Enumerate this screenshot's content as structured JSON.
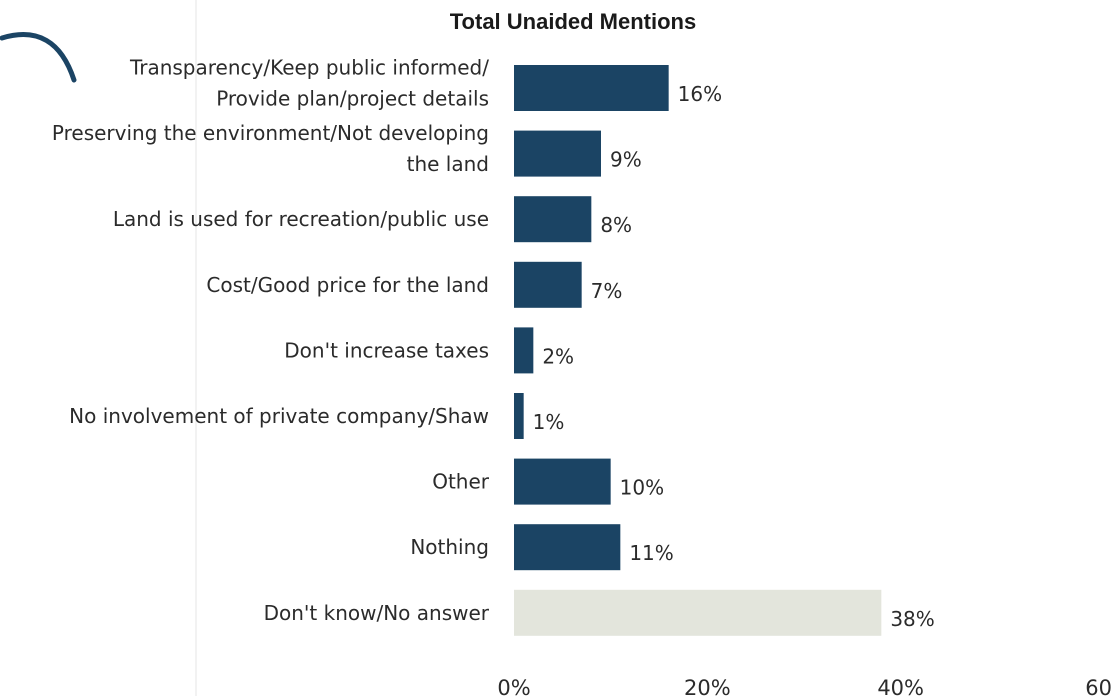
{
  "colors": {
    "bar": "#1b4464",
    "bar_highlight": "#e3e5dc",
    "text": "#2b2b2b",
    "decor_arc": "#1b4464",
    "divider": "#e6e6e6"
  },
  "chart_data": {
    "type": "bar",
    "orientation": "horizontal",
    "title": "Total Unaided Mentions",
    "categories": [
      [
        "Transparency/Keep public informed/",
        "Provide plan/project details"
      ],
      [
        "Preserving the environment/Not developing",
        "the land"
      ],
      [
        "Land is used for recreation/public use"
      ],
      [
        "Cost/Good price for the land"
      ],
      [
        "Don't increase taxes"
      ],
      [
        "No involvement of private company/Shaw"
      ],
      [
        "Other"
      ],
      [
        "Nothing"
      ],
      [
        "Don't know/No answer"
      ]
    ],
    "values": [
      16,
      9,
      8,
      7,
      2,
      1,
      10,
      11,
      38
    ],
    "data_labels": [
      "16%",
      "9%",
      "8%",
      "7%",
      "2%",
      "1%",
      "10%",
      "11%",
      "38%"
    ],
    "highlighted_index": 8,
    "xlim": [
      0,
      60
    ],
    "xticks": [
      0,
      20,
      40,
      60
    ],
    "xtick_labels": [
      "0%",
      "20%",
      "40%",
      "60"
    ],
    "grid": false,
    "legend": "none"
  }
}
